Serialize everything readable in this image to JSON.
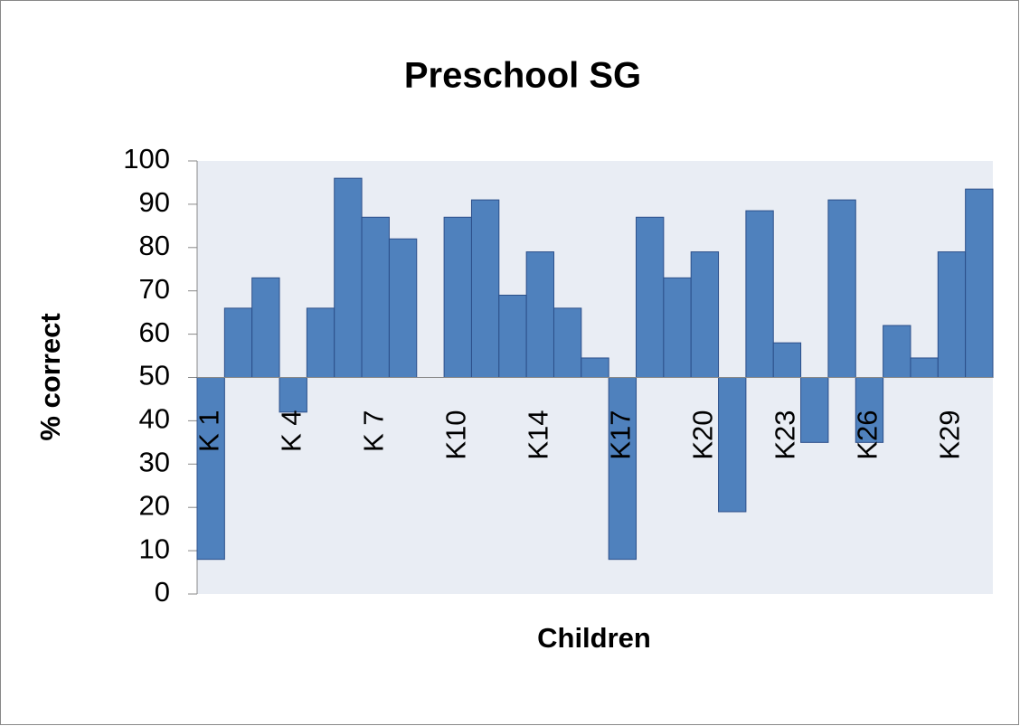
{
  "chart_data": {
    "type": "bar",
    "title": "Preschool SG",
    "x_label": "Children",
    "y_label": "% correct",
    "categories": [
      "K 1",
      null,
      null,
      "K 4",
      null,
      null,
      "K 7",
      null,
      null,
      "K10",
      null,
      null,
      "K14",
      null,
      null,
      "K17",
      null,
      null,
      "K20",
      null,
      null,
      "K23",
      null,
      null,
      "K26",
      null,
      null,
      "K29",
      null
    ],
    "values": [
      8,
      66,
      73,
      42,
      66,
      96,
      87,
      82,
      50,
      87,
      91,
      69,
      79,
      66,
      54.5,
      8,
      87,
      73,
      79,
      19,
      88.5,
      58,
      35,
      91,
      35,
      62,
      54.5,
      79,
      93.5
    ],
    "color": "#4f81bd",
    "baseline": 50,
    "ylim": [
      0,
      100
    ],
    "yticks": [
      0,
      10,
      20,
      30,
      40,
      50,
      60,
      70,
      80,
      90,
      100
    ]
  }
}
